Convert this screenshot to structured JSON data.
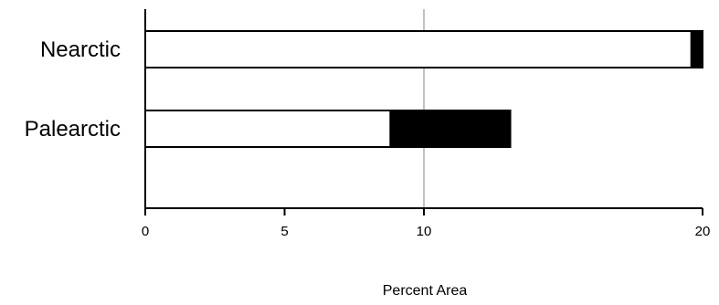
{
  "chart_data": {
    "type": "bar",
    "orientation": "horizontal",
    "stacked": true,
    "categories": [
      "Nearctic",
      "Palearctic"
    ],
    "series": [
      {
        "values": [
          19.6,
          8.8
        ],
        "color": "#ffffff"
      },
      {
        "values": [
          0.4,
          4.3
        ],
        "color": "#000000"
      }
    ],
    "xlabel": "Percent Area",
    "ylabel": "",
    "xlim": [
      0,
      20
    ],
    "xticks": [
      0,
      5,
      10,
      20
    ],
    "reference_line": 10,
    "grid": false
  }
}
